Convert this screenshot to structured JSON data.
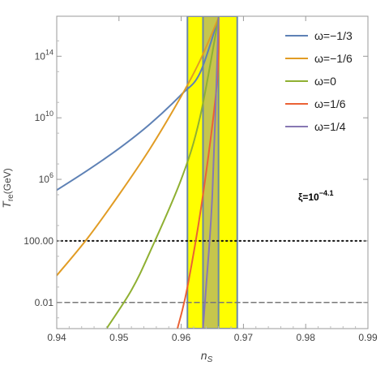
{
  "chart_data": {
    "type": "line",
    "xlabel": "n",
    "xlabel_sub": "S",
    "ylabel": "T",
    "ylabel_sub": "re",
    "ylabel_unit": "(GeV)",
    "xlim": [
      0.94,
      0.99
    ],
    "ylim_log10": [
      -3.7,
      16.6
    ],
    "y_scale": "log",
    "x_ticks": [
      "0.94",
      "0.95",
      "0.96",
      "0.97",
      "0.98",
      "0.99"
    ],
    "y_ticks": [
      {
        "log10": -2,
        "base": "0.01",
        "exp": ""
      },
      {
        "log10": 2,
        "base": "100.00",
        "exp": ""
      },
      {
        "log10": 6,
        "base": "10",
        "exp": "6"
      },
      {
        "log10": 10,
        "base": "10",
        "exp": "10"
      },
      {
        "log10": 14,
        "base": "10",
        "exp": "14"
      }
    ],
    "grid": false,
    "legend_position": "top-right",
    "annotation": {
      "base": "ξ=10",
      "exp": "−4.1"
    },
    "bands": [
      {
        "x0": 0.961,
        "x1": 0.969,
        "color": "#ffff00",
        "edge": "#6a88a8"
      },
      {
        "x0": 0.9635,
        "x1": 0.966,
        "color": "#c6c64c",
        "edge": "#6a88a8"
      }
    ],
    "hlines": [
      {
        "y_log10": 2,
        "style": "dotted",
        "color": "#111111"
      },
      {
        "y_log10": -2,
        "style": "dashed",
        "color": "#777777"
      }
    ],
    "series": [
      {
        "name": "ω=−1/3",
        "color": "#5e81b5",
        "points": [
          [
            0.94,
            5.3
          ],
          [
            0.945,
            6.6
          ],
          [
            0.95,
            8.0
          ],
          [
            0.955,
            9.6
          ],
          [
            0.96,
            11.5
          ],
          [
            0.963,
            12.9
          ],
          [
            0.966,
            16.5
          ]
        ]
      },
      {
        "name": "ω=−1/6",
        "color": "#e19c24",
        "points": [
          [
            0.94,
            -0.25
          ],
          [
            0.945,
            2.2
          ],
          [
            0.95,
            5.0
          ],
          [
            0.955,
            8.0
          ],
          [
            0.96,
            11.4
          ],
          [
            0.963,
            13.7
          ],
          [
            0.966,
            16.5
          ]
        ]
      },
      {
        "name": "ω=0",
        "color": "#8fb032",
        "points": [
          [
            0.948,
            -3.7
          ],
          [
            0.952,
            -1.2
          ],
          [
            0.955,
            1.3
          ],
          [
            0.96,
            6.0
          ],
          [
            0.963,
            10.0
          ],
          [
            0.966,
            16.5
          ]
        ]
      },
      {
        "name": "ω=1/6",
        "color": "#eb6235",
        "points": [
          [
            0.9594,
            -3.7
          ],
          [
            0.961,
            -1.0
          ],
          [
            0.9635,
            5.0
          ],
          [
            0.9658,
            12.5
          ],
          [
            0.966,
            16.5
          ]
        ]
      },
      {
        "name": "ω=1/4",
        "color": "#8778b3",
        "points": [
          [
            0.9635,
            -3.7
          ],
          [
            0.964,
            -1.0
          ],
          [
            0.965,
            5.0
          ],
          [
            0.966,
            16.5
          ]
        ]
      }
    ]
  }
}
